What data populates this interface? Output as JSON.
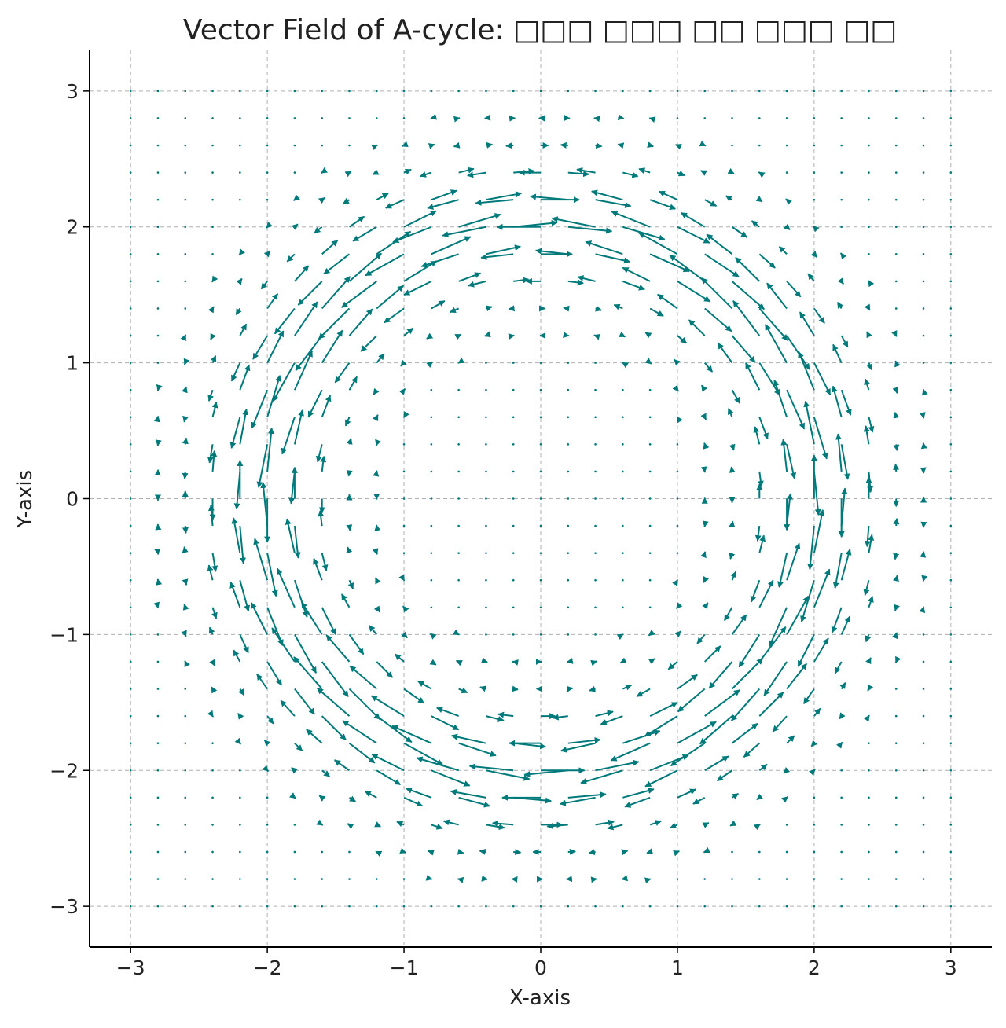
{
  "chart_data": {
    "type": "quiver",
    "title": "Vector Field of A-cycle: □□□ □□□ □□ □□□ □□",
    "xlabel": "X-axis",
    "ylabel": "Y-axis",
    "xlim": [
      -3.3,
      3.3
    ],
    "ylim": [
      -3.3,
      3.3
    ],
    "xticks": [
      -3,
      -2,
      -1,
      0,
      1,
      2,
      3
    ],
    "yticks": [
      -3,
      -2,
      -1,
      0,
      1,
      2,
      3
    ],
    "xtick_labels": [
      "−3",
      "−2",
      "−1",
      "0",
      "1",
      "2",
      "3"
    ],
    "ytick_labels": [
      "−3",
      "−2",
      "−1",
      "0",
      "1",
      "2",
      "3"
    ],
    "grid": true,
    "grid_range": [
      -3,
      3
    ],
    "grid_points": 31,
    "field": "rotation(-y, x) modulated by exp(-(r-2)^2 / 0.18), with alternating arrow direction in the band",
    "ring_radius": 2.0,
    "arrow_color": "#00797a"
  }
}
